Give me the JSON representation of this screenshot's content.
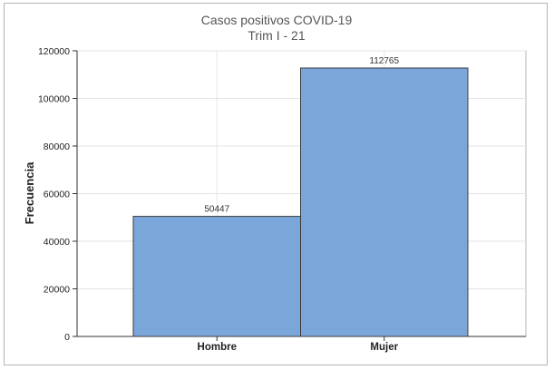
{
  "chart_data": {
    "type": "bar",
    "title": "Casos positivos COVID-19",
    "subtitle": "Trim I - 21",
    "xlabel": "",
    "ylabel": "Frecuencia",
    "categories": [
      "Hombre",
      "Mujer"
    ],
    "values": [
      50447,
      112765
    ],
    "data_labels": [
      "50447",
      "112765"
    ],
    "ylim": [
      0,
      120000
    ],
    "yticks": [
      0,
      20000,
      40000,
      60000,
      80000,
      100000,
      120000
    ],
    "grid": true,
    "legend": "none",
    "bar_color": "#7ba6da",
    "bar_edge_color": "#3c3c3c"
  }
}
